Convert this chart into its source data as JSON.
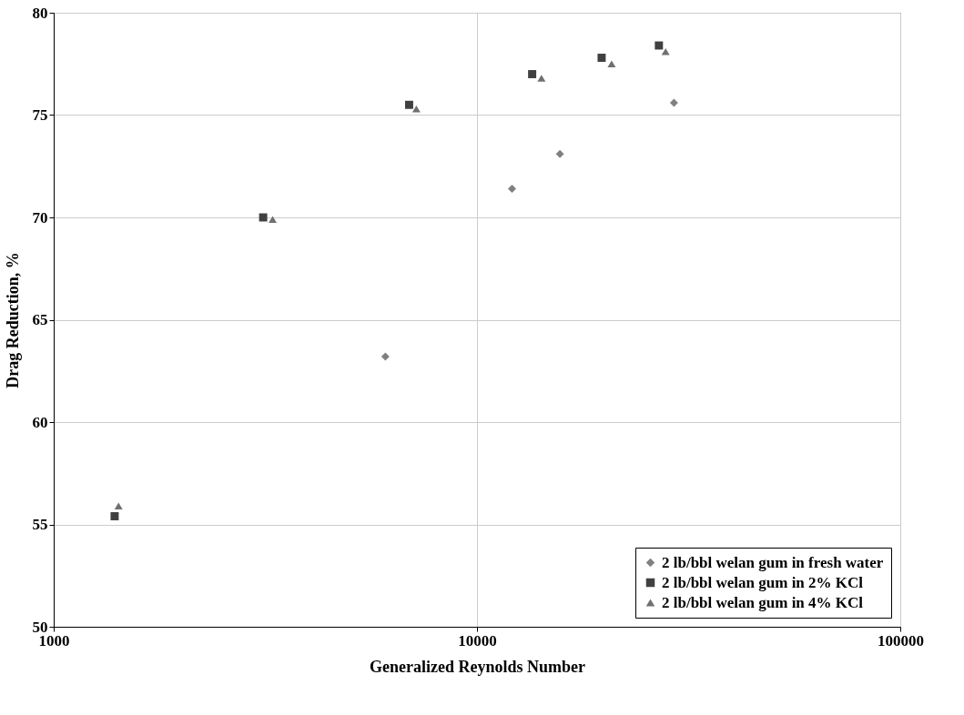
{
  "chart_data": {
    "type": "scatter",
    "xlabel": "Generalized Reynolds Number",
    "ylabel": "Drag Reduction, %",
    "log": "x",
    "xlim": [
      1000,
      100000
    ],
    "xticks": [
      1000,
      10000,
      100000
    ],
    "ylim": [
      50,
      80
    ],
    "yticks": [
      50,
      55,
      60,
      65,
      70,
      75,
      80
    ],
    "grid": true,
    "legend": "bottom right",
    "series": [
      {
        "name": "2 lb/bbl welan gum in fresh water",
        "color": "#808080",
        "marker": "diamond",
        "x": [
          6075,
          12100,
          15700,
          29200
        ],
        "values": [
          63.2,
          71.4,
          73.1,
          75.6
        ]
      },
      {
        "name": "2 lb/bbl welan gum in 2% KCl",
        "color": "#404040",
        "marker": "square",
        "x": [
          1393,
          3125,
          6913,
          13500,
          19700,
          26900
        ],
        "values": [
          55.4,
          70.0,
          75.5,
          77.0,
          77.8,
          78.4
        ]
      },
      {
        "name": "2 lb/bbl welan gum in 4% KCl",
        "color": "#707070",
        "marker": "triangle",
        "x": [
          1423,
          3290,
          7190,
          14200,
          20800,
          27900
        ],
        "values": [
          55.9,
          69.9,
          75.3,
          76.8,
          77.5,
          78.1
        ]
      }
    ]
  }
}
